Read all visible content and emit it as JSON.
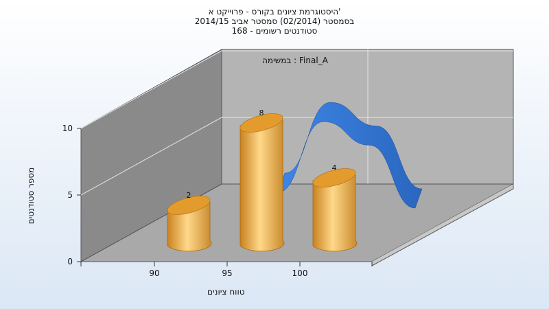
{
  "title_lines": [
    "היסטוגרמת ציונים בקורס - פרוייקט א'",
    "בסמסטר  (02/2014)  סמסטר אביב 2014/15",
    "סטודנטים רשומים - 168"
  ],
  "colors": {
    "bar": "#E8A33A",
    "curve": "#2F6FC8",
    "background_top": "#FFFFFF",
    "background_bottom": "#DBE7F5"
  },
  "chart_data": {
    "type": "bar",
    "title": "היסטוגרמת ציונים בקורס - פרוייקט א'",
    "subtitle": "בסמסטר  (02/2014)  סמסטר אביב 2014/15 | סטודנטים רשומים - 168",
    "annotation": "במשימה : Final_A",
    "xlabel": "טווח ציונים",
    "ylabel": "מספר סטודנטים",
    "categories": [
      "90",
      "95",
      "100"
    ],
    "values": [
      2,
      8,
      4
    ],
    "data_labels": [
      "2",
      "8",
      "4"
    ],
    "y_ticks": [
      "0",
      "5",
      "10"
    ],
    "ylim": [
      0,
      10
    ],
    "grid": true,
    "curve_values": [
      6.5,
      11,
      9.5,
      5.5
    ]
  }
}
